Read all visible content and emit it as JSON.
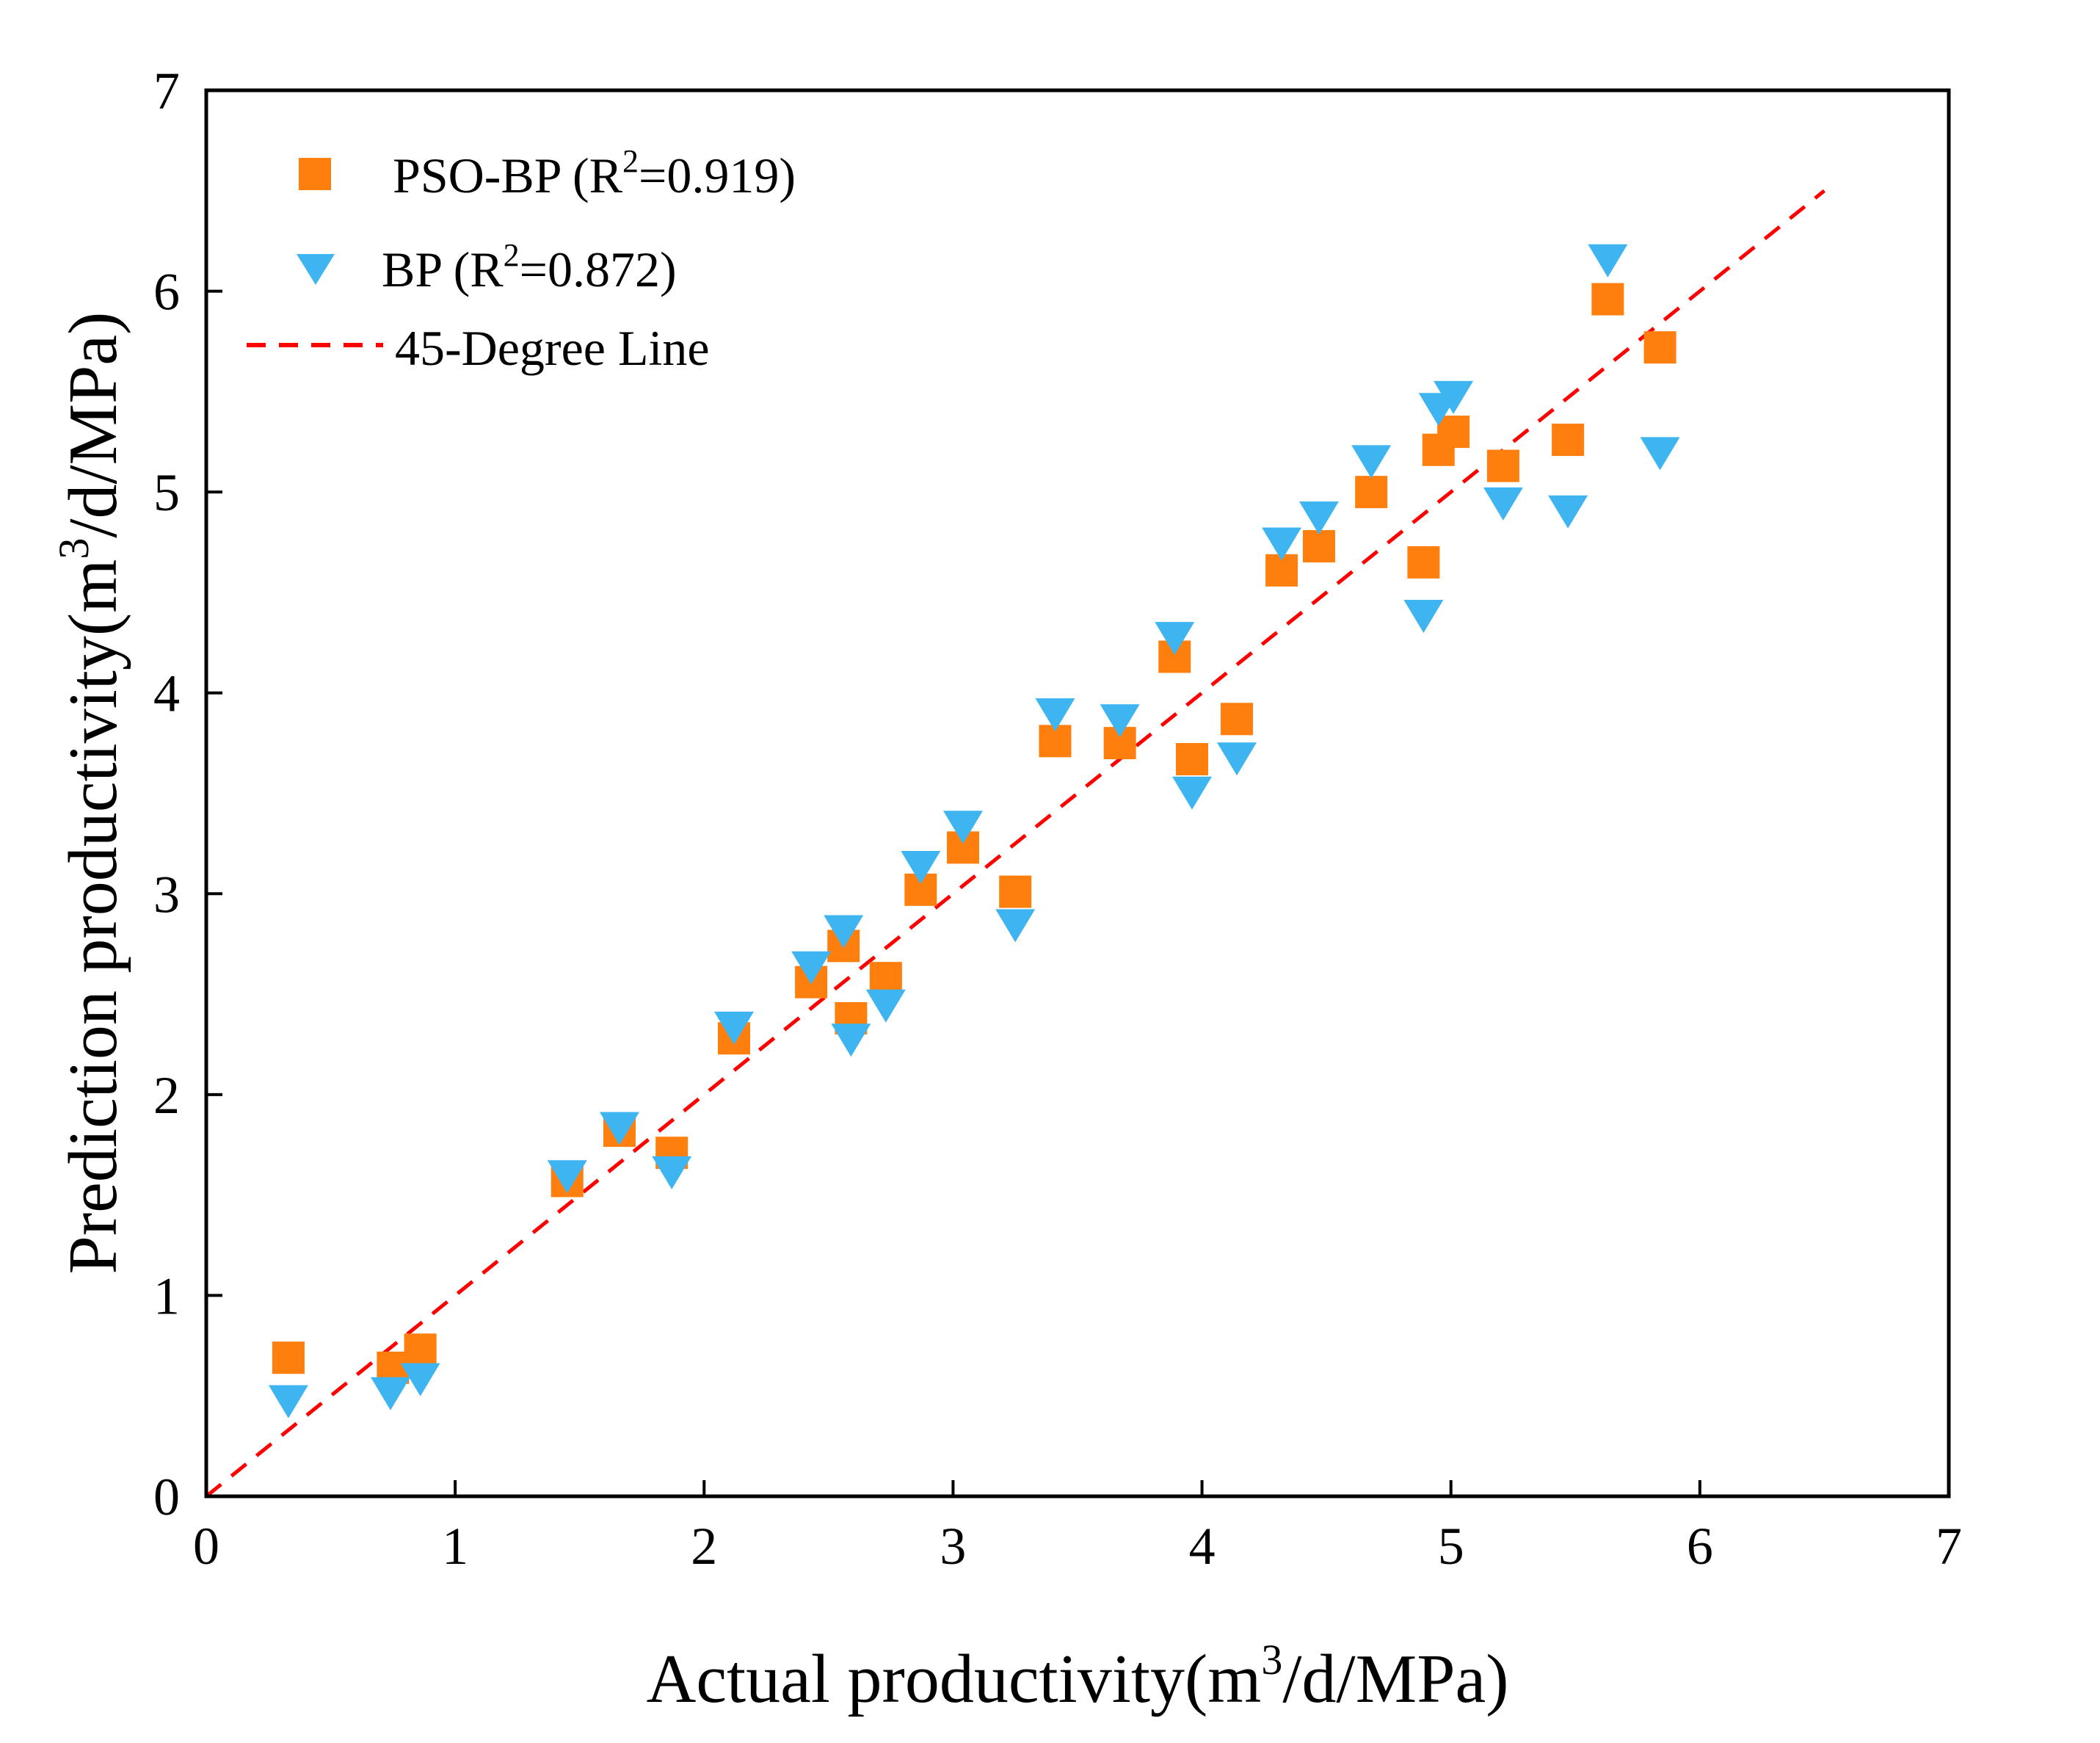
{
  "chart_data": {
    "type": "scatter",
    "title": "",
    "xlabel": "Actual productivity(m3/d/MPa)",
    "ylabel": "Prediction productivity(m3/d/MPa)",
    "xlabel_parts": {
      "pre": "Actual productivity(m",
      "sup": "3",
      "post": "/d/MPa)"
    },
    "ylabel_parts": {
      "pre": "Prediction productivity(m",
      "sup": "3",
      "post": "/d/MPa)"
    },
    "xlim": [
      0,
      7
    ],
    "ylim": [
      0,
      7
    ],
    "xticks": [
      0,
      1,
      2,
      3,
      4,
      5,
      6,
      7
    ],
    "yticks": [
      0,
      1,
      2,
      3,
      4,
      5,
      6,
      7
    ],
    "grid": false,
    "legend_position": "top-left",
    "series": [
      {
        "name": "PSO-BP (R2=0.919)",
        "label_pre": "PSO-BP (R",
        "label_sup": "2",
        "label_post": "=0.919)",
        "marker": "square",
        "color": "#FF7F0E",
        "points": [
          [
            0.33,
            0.69
          ],
          [
            0.75,
            0.64
          ],
          [
            0.86,
            0.73
          ],
          [
            1.45,
            1.57
          ],
          [
            1.66,
            1.82
          ],
          [
            1.87,
            1.71
          ],
          [
            2.12,
            2.28
          ],
          [
            2.43,
            2.56
          ],
          [
            2.56,
            2.74
          ],
          [
            2.59,
            2.38
          ],
          [
            2.73,
            2.58
          ],
          [
            2.87,
            3.02
          ],
          [
            3.04,
            3.23
          ],
          [
            3.25,
            3.01
          ],
          [
            3.41,
            3.76
          ],
          [
            3.67,
            3.75
          ],
          [
            3.89,
            4.18
          ],
          [
            3.96,
            3.67
          ],
          [
            4.14,
            3.87
          ],
          [
            4.32,
            4.61
          ],
          [
            4.47,
            4.73
          ],
          [
            4.68,
            5.0
          ],
          [
            4.89,
            4.65
          ],
          [
            4.95,
            5.21
          ],
          [
            5.01,
            5.3
          ],
          [
            5.21,
            5.13
          ],
          [
            5.47,
            5.26
          ],
          [
            5.63,
            5.96
          ],
          [
            5.84,
            5.72
          ]
        ]
      },
      {
        "name": "BP (R2=0.872)",
        "label_pre": "BP (R",
        "label_sup": "2",
        "label_post": "=0.872)",
        "marker": "triangle-down",
        "color": "#3EB5F1",
        "points": [
          [
            0.33,
            0.48
          ],
          [
            0.74,
            0.52
          ],
          [
            0.86,
            0.59
          ],
          [
            1.45,
            1.6
          ],
          [
            1.66,
            1.84
          ],
          [
            1.87,
            1.62
          ],
          [
            2.12,
            2.34
          ],
          [
            2.43,
            2.64
          ],
          [
            2.56,
            2.82
          ],
          [
            2.59,
            2.28
          ],
          [
            2.73,
            2.45
          ],
          [
            2.87,
            3.14
          ],
          [
            3.04,
            3.34
          ],
          [
            3.25,
            2.85
          ],
          [
            3.41,
            3.9
          ],
          [
            3.67,
            3.87
          ],
          [
            3.89,
            4.28
          ],
          [
            3.96,
            3.51
          ],
          [
            4.14,
            3.68
          ],
          [
            4.32,
            4.75
          ],
          [
            4.47,
            4.88
          ],
          [
            4.68,
            5.16
          ],
          [
            4.89,
            4.39
          ],
          [
            4.95,
            5.42
          ],
          [
            5.01,
            5.48
          ],
          [
            5.21,
            4.95
          ],
          [
            5.47,
            4.91
          ],
          [
            5.63,
            6.16
          ],
          [
            5.84,
            5.2
          ]
        ]
      }
    ],
    "reference_line": {
      "name": "45-Degree Line",
      "style": "dashed",
      "color": "#FF0000",
      "from": [
        0,
        0
      ],
      "to": [
        6.5,
        6.5
      ]
    }
  }
}
